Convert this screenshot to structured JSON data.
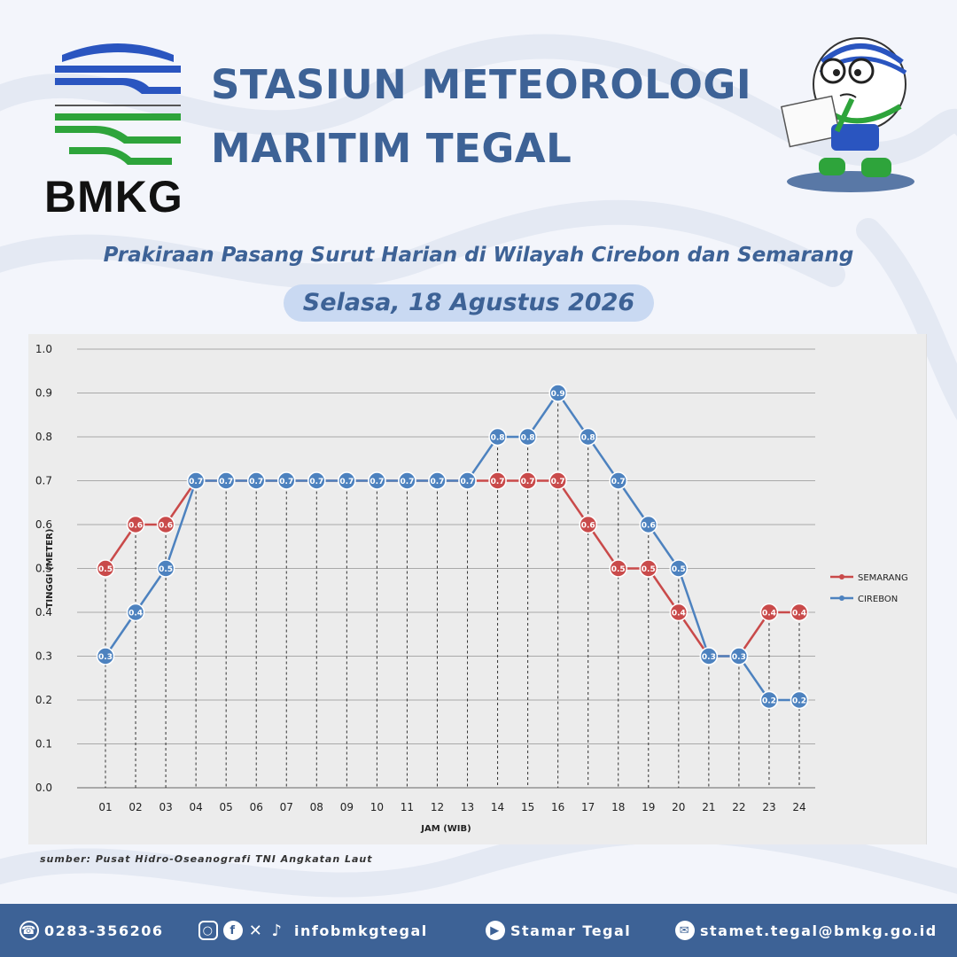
{
  "header": {
    "logo_text": "BMKG",
    "title_line1": "STASIUN METEOROLOGI",
    "title_line2": "MARITIM TEGAL"
  },
  "subtitle": "Prakiraan Pasang Surut Harian di Wilayah Cirebon dan Semarang",
  "date": "Selasa, 18 Agustus 2026",
  "source": "sumber: Pusat Hidro-Oseanografi TNI Angkatan Laut",
  "colors": {
    "primary": "#3d6296",
    "semarang": "#c94a4a",
    "cirebon": "#4d82bf"
  },
  "chart_data": {
    "type": "line",
    "title": "",
    "xlabel": "JAM (WIB)",
    "ylabel": "TINGGI (METER)",
    "ylim": [
      0,
      1.0
    ],
    "y_ticks": [
      "0.0",
      "0.1",
      "0.2",
      "0.3",
      "0.4",
      "0.5",
      "0.6",
      "0.7",
      "0.8",
      "0.9",
      "1.0"
    ],
    "x": [
      "01",
      "02",
      "03",
      "04",
      "05",
      "06",
      "07",
      "08",
      "09",
      "10",
      "11",
      "12",
      "13",
      "14",
      "15",
      "16",
      "17",
      "18",
      "19",
      "20",
      "21",
      "22",
      "23",
      "24"
    ],
    "grid": true,
    "legend_placement": "right",
    "series": [
      {
        "name": "SEMARANG",
        "color": "#c94a4a",
        "values": [
          0.5,
          0.6,
          0.6,
          0.7,
          0.7,
          0.7,
          0.7,
          0.7,
          0.7,
          0.7,
          0.7,
          0.7,
          0.7,
          0.7,
          0.7,
          0.7,
          0.6,
          0.5,
          0.5,
          0.4,
          0.3,
          0.3,
          0.4,
          0.4
        ]
      },
      {
        "name": "CIREBON",
        "color": "#4d82bf",
        "values": [
          0.3,
          0.4,
          0.5,
          0.7,
          0.7,
          0.7,
          0.7,
          0.7,
          0.7,
          0.7,
          0.7,
          0.7,
          0.7,
          0.8,
          0.8,
          0.9,
          0.8,
          0.7,
          0.6,
          0.5,
          0.3,
          0.3,
          0.2,
          0.2
        ]
      }
    ]
  },
  "footer": {
    "phone": "0283-356206",
    "social": "infobmkgtegal",
    "youtube": "Stamar Tegal",
    "email": "stamet.tegal@bmkg.go.id",
    "icons": [
      "phone-icon",
      "instagram-icon",
      "facebook-icon",
      "x-icon",
      "tiktok-icon",
      "youtube-icon",
      "email-icon"
    ]
  }
}
